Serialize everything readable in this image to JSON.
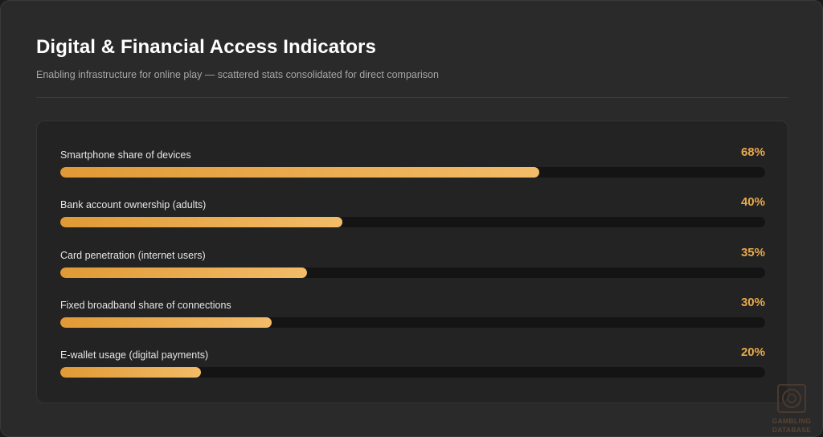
{
  "header": {
    "title": "Digital & Financial Access Indicators",
    "subtitle": "Enabling infrastructure for online play — scattered stats consolidated for direct comparison"
  },
  "chart_data": {
    "type": "bar",
    "orientation": "horizontal",
    "categories": [
      "Smartphone share of devices",
      "Bank account ownership (adults)",
      "Card penetration (internet users)",
      "Fixed broadband share of connections",
      "E-wallet usage (digital payments)"
    ],
    "values": [
      68,
      40,
      35,
      30,
      20
    ],
    "value_labels": [
      "68%",
      "40%",
      "35%",
      "30%",
      "20%"
    ],
    "xlim": [
      0,
      100
    ],
    "unit": "%",
    "grid": false,
    "legend": "none",
    "colors": {
      "bar_start": "#e09a35",
      "bar_end": "#f3bc68",
      "track": "#141414",
      "value_text": "#e9a94b"
    }
  },
  "watermark": {
    "line1": "GAMBLING",
    "line2": "DATABASE"
  }
}
